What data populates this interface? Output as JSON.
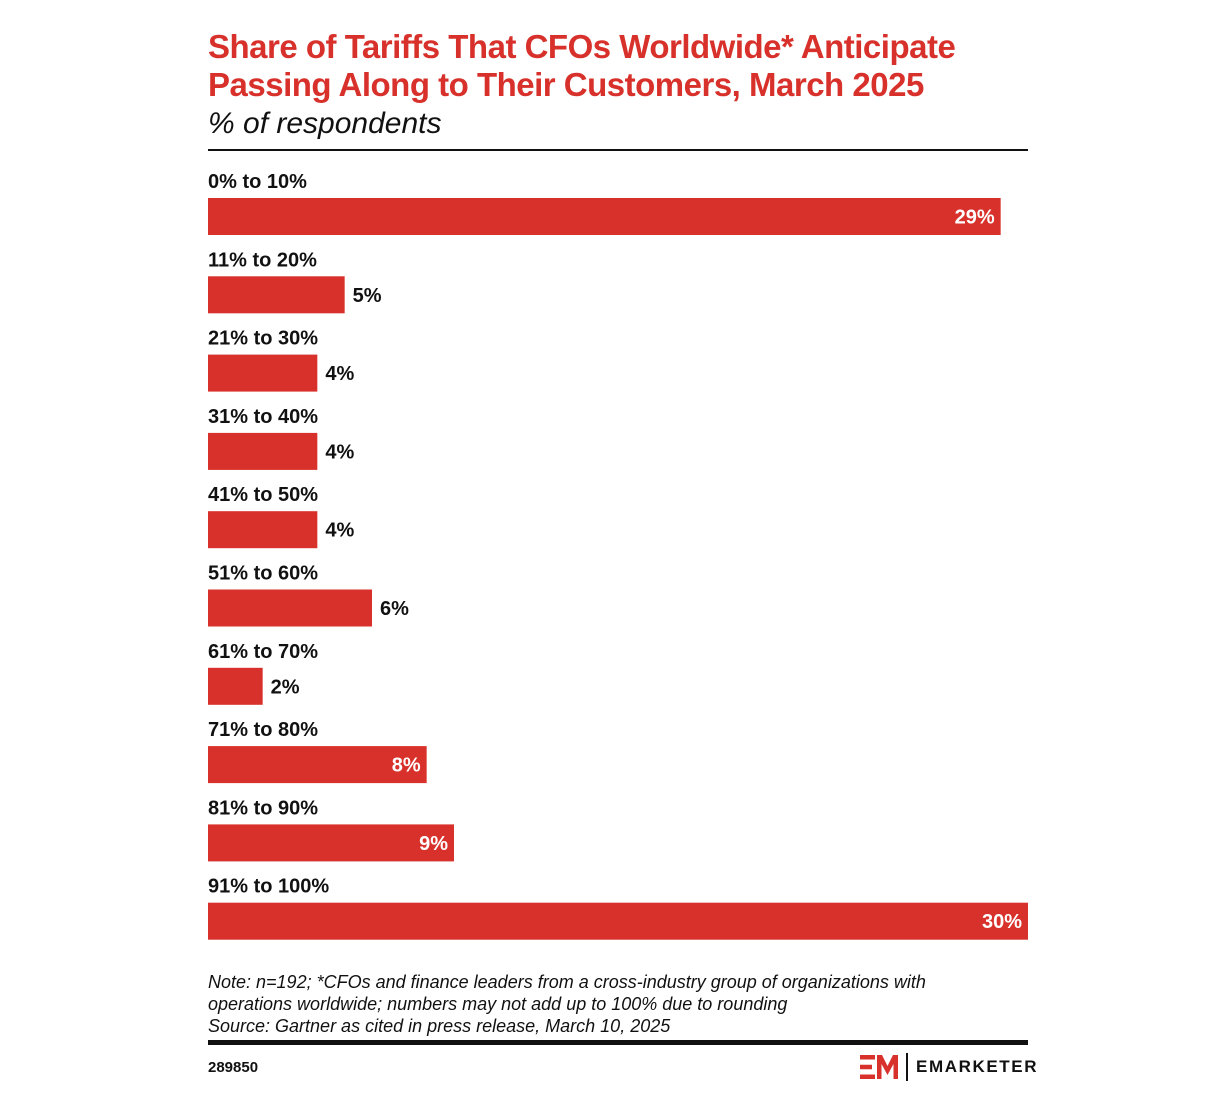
{
  "header": {
    "title": "Share of Tariffs That CFOs Worldwide* Anticipate Passing Along to Their Customers, March 2025",
    "subtitle": "% of respondents"
  },
  "chart_data": {
    "type": "bar",
    "orientation": "horizontal",
    "categories": [
      "0% to 10%",
      "11% to 20%",
      "21% to 30%",
      "31% to 40%",
      "41% to 50%",
      "51% to 60%",
      "61% to 70%",
      "71% to 80%",
      "81% to 90%",
      "91% to 100%"
    ],
    "values": [
      29,
      5,
      4,
      4,
      4,
      6,
      2,
      8,
      9,
      30
    ],
    "value_labels": [
      "29%",
      "5%",
      "4%",
      "4%",
      "4%",
      "6%",
      "2%",
      "8%",
      "9%",
      "30%"
    ],
    "title": "Share of Tariffs That CFOs Worldwide* Anticipate Passing Along to Their Customers, March 2025",
    "subtitle": "% of respondents",
    "xlim": [
      0,
      30
    ],
    "grid": false,
    "legend": "none",
    "bar_color": "#d8312b"
  },
  "footer": {
    "note_line1": "Note: n=192; *CFOs and finance leaders from a cross-industry group of organizations with",
    "note_line2": "operations worldwide; numbers may not add up to 100% due to rounding",
    "source": "Source: Gartner as cited in press release, March 10, 2025",
    "chart_id": "289850",
    "brand": "EMARKETER"
  },
  "colors": {
    "accent": "#d8312b",
    "text": "#111111"
  },
  "icons": {
    "brand_logo": "em-logo-icon"
  }
}
